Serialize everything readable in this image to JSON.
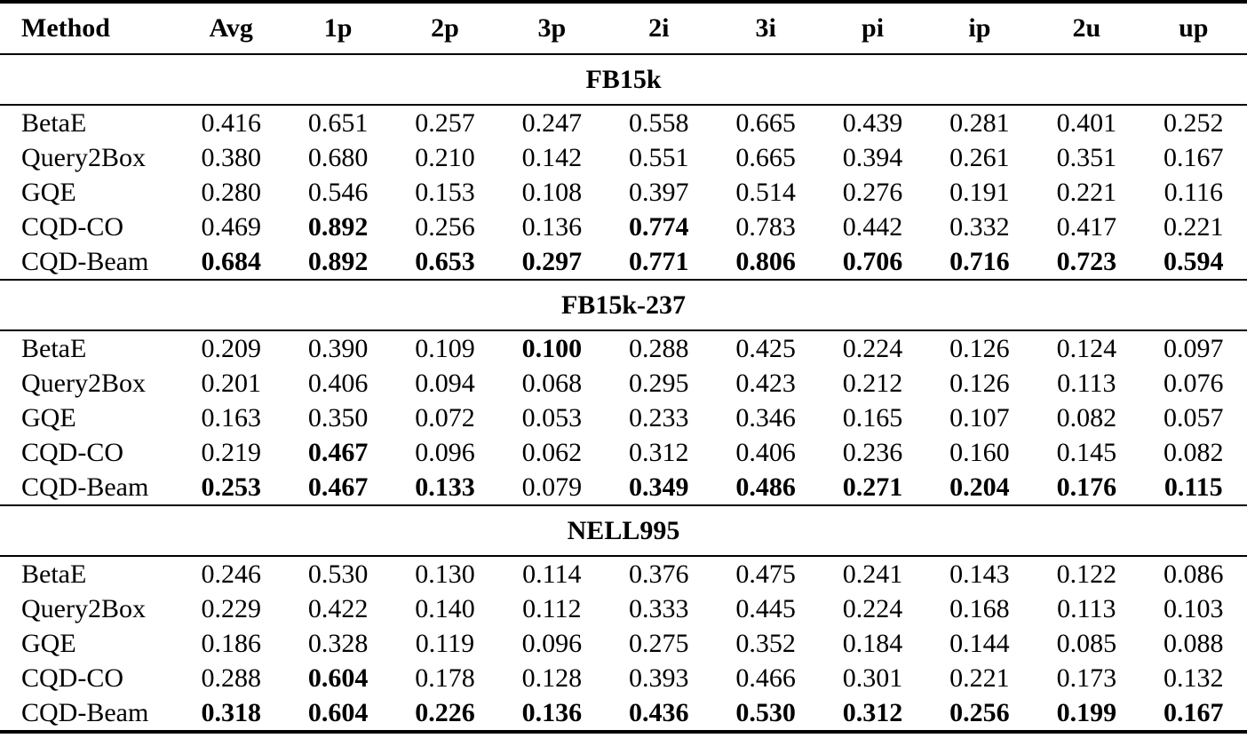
{
  "page": {
    "background_color": "#ffffff",
    "text_color": "#000000",
    "rule_color": "#000000"
  },
  "table": {
    "columns": [
      "Method",
      "Avg",
      "1p",
      "2p",
      "3p",
      "2i",
      "3i",
      "pi",
      "ip",
      "2u",
      "up"
    ],
    "sections": [
      {
        "title": "FB15k",
        "rows": [
          {
            "method": "BetaE",
            "values": [
              "0.416",
              "0.651",
              "0.257",
              "0.247",
              "0.558",
              "0.665",
              "0.439",
              "0.281",
              "0.401",
              "0.252"
            ],
            "bold": [
              0,
              0,
              0,
              0,
              0,
              0,
              0,
              0,
              0,
              0
            ]
          },
          {
            "method": "Query2Box",
            "values": [
              "0.380",
              "0.680",
              "0.210",
              "0.142",
              "0.551",
              "0.665",
              "0.394",
              "0.261",
              "0.351",
              "0.167"
            ],
            "bold": [
              0,
              0,
              0,
              0,
              0,
              0,
              0,
              0,
              0,
              0
            ]
          },
          {
            "method": "GQE",
            "values": [
              "0.280",
              "0.546",
              "0.153",
              "0.108",
              "0.397",
              "0.514",
              "0.276",
              "0.191",
              "0.221",
              "0.116"
            ],
            "bold": [
              0,
              0,
              0,
              0,
              0,
              0,
              0,
              0,
              0,
              0
            ]
          },
          {
            "method": "CQD-CO",
            "values": [
              "0.469",
              "0.892",
              "0.256",
              "0.136",
              "0.774",
              "0.783",
              "0.442",
              "0.332",
              "0.417",
              "0.221"
            ],
            "bold": [
              0,
              1,
              0,
              0,
              1,
              0,
              0,
              0,
              0,
              0
            ]
          },
          {
            "method": "CQD-Beam",
            "values": [
              "0.684",
              "0.892",
              "0.653",
              "0.297",
              "0.771",
              "0.806",
              "0.706",
              "0.716",
              "0.723",
              "0.594"
            ],
            "bold": [
              1,
              1,
              1,
              1,
              1,
              1,
              1,
              1,
              1,
              1
            ]
          }
        ]
      },
      {
        "title": "FB15k-237",
        "rows": [
          {
            "method": "BetaE",
            "values": [
              "0.209",
              "0.390",
              "0.109",
              "0.100",
              "0.288",
              "0.425",
              "0.224",
              "0.126",
              "0.124",
              "0.097"
            ],
            "bold": [
              0,
              0,
              0,
              1,
              0,
              0,
              0,
              0,
              0,
              0
            ]
          },
          {
            "method": "Query2Box",
            "values": [
              "0.201",
              "0.406",
              "0.094",
              "0.068",
              "0.295",
              "0.423",
              "0.212",
              "0.126",
              "0.113",
              "0.076"
            ],
            "bold": [
              0,
              0,
              0,
              0,
              0,
              0,
              0,
              0,
              0,
              0
            ]
          },
          {
            "method": "GQE",
            "values": [
              "0.163",
              "0.350",
              "0.072",
              "0.053",
              "0.233",
              "0.346",
              "0.165",
              "0.107",
              "0.082",
              "0.057"
            ],
            "bold": [
              0,
              0,
              0,
              0,
              0,
              0,
              0,
              0,
              0,
              0
            ]
          },
          {
            "method": "CQD-CO",
            "values": [
              "0.219",
              "0.467",
              "0.096",
              "0.062",
              "0.312",
              "0.406",
              "0.236",
              "0.160",
              "0.145",
              "0.082"
            ],
            "bold": [
              0,
              1,
              0,
              0,
              0,
              0,
              0,
              0,
              0,
              0
            ]
          },
          {
            "method": "CQD-Beam",
            "values": [
              "0.253",
              "0.467",
              "0.133",
              "0.079",
              "0.349",
              "0.486",
              "0.271",
              "0.204",
              "0.176",
              "0.115"
            ],
            "bold": [
              1,
              1,
              1,
              0,
              1,
              1,
              1,
              1,
              1,
              1
            ]
          }
        ]
      },
      {
        "title": "NELL995",
        "rows": [
          {
            "method": "BetaE",
            "values": [
              "0.246",
              "0.530",
              "0.130",
              "0.114",
              "0.376",
              "0.475",
              "0.241",
              "0.143",
              "0.122",
              "0.086"
            ],
            "bold": [
              0,
              0,
              0,
              0,
              0,
              0,
              0,
              0,
              0,
              0
            ]
          },
          {
            "method": "Query2Box",
            "values": [
              "0.229",
              "0.422",
              "0.140",
              "0.112",
              "0.333",
              "0.445",
              "0.224",
              "0.168",
              "0.113",
              "0.103"
            ],
            "bold": [
              0,
              0,
              0,
              0,
              0,
              0,
              0,
              0,
              0,
              0
            ]
          },
          {
            "method": "GQE",
            "values": [
              "0.186",
              "0.328",
              "0.119",
              "0.096",
              "0.275",
              "0.352",
              "0.184",
              "0.144",
              "0.085",
              "0.088"
            ],
            "bold": [
              0,
              0,
              0,
              0,
              0,
              0,
              0,
              0,
              0,
              0
            ]
          },
          {
            "method": "CQD-CO",
            "values": [
              "0.288",
              "0.604",
              "0.178",
              "0.128",
              "0.393",
              "0.466",
              "0.301",
              "0.221",
              "0.173",
              "0.132"
            ],
            "bold": [
              0,
              1,
              0,
              0,
              0,
              0,
              0,
              0,
              0,
              0
            ]
          },
          {
            "method": "CQD-Beam",
            "values": [
              "0.318",
              "0.604",
              "0.226",
              "0.136",
              "0.436",
              "0.530",
              "0.312",
              "0.256",
              "0.199",
              "0.167"
            ],
            "bold": [
              1,
              1,
              1,
              1,
              1,
              1,
              1,
              1,
              1,
              1
            ]
          }
        ]
      }
    ]
  }
}
